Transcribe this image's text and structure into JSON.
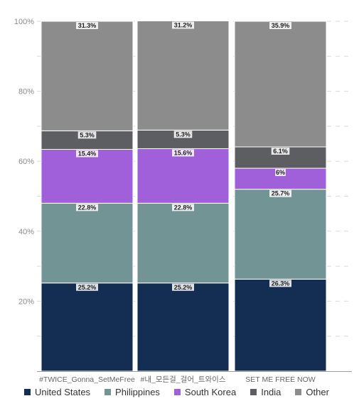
{
  "chart_data": {
    "type": "bar",
    "stacked": true,
    "normalized": true,
    "categories": [
      "#TWICE_Gonna_SetMeFree",
      "#내_모든걸_걸어_트와이스",
      "SET ME FREE NOW"
    ],
    "series": [
      {
        "name": "United States",
        "color": "#142d52",
        "values": [
          25.2,
          25.2,
          26.3
        ],
        "labels": [
          "25.2%",
          "25.2%",
          "26.3%"
        ]
      },
      {
        "name": "Philippines",
        "color": "#739495",
        "values": [
          22.8,
          22.8,
          25.7
        ],
        "labels": [
          "22.8%",
          "22.8%",
          "25.7%"
        ]
      },
      {
        "name": "South Korea",
        "color": "#a060da",
        "values": [
          15.4,
          15.6,
          6.0
        ],
        "labels": [
          "15.4%",
          "15.6%",
          "6%"
        ]
      },
      {
        "name": "India",
        "color": "#5c5e61",
        "values": [
          5.3,
          5.3,
          6.1
        ],
        "labels": [
          "5.3%",
          "5.3%",
          "6.1%"
        ]
      },
      {
        "name": "Other",
        "color": "#8c8c8c",
        "values": [
          31.3,
          31.2,
          35.9
        ],
        "labels": [
          "31.3%",
          "31.2%",
          "35.9%"
        ]
      }
    ],
    "y_ticks": [
      20,
      40,
      60,
      80,
      100
    ],
    "y_tick_labels": [
      "20%",
      "40%",
      "60%",
      "80%",
      "100%"
    ],
    "ylim": [
      0,
      100
    ],
    "grid": true,
    "legend_position": "bottom"
  }
}
